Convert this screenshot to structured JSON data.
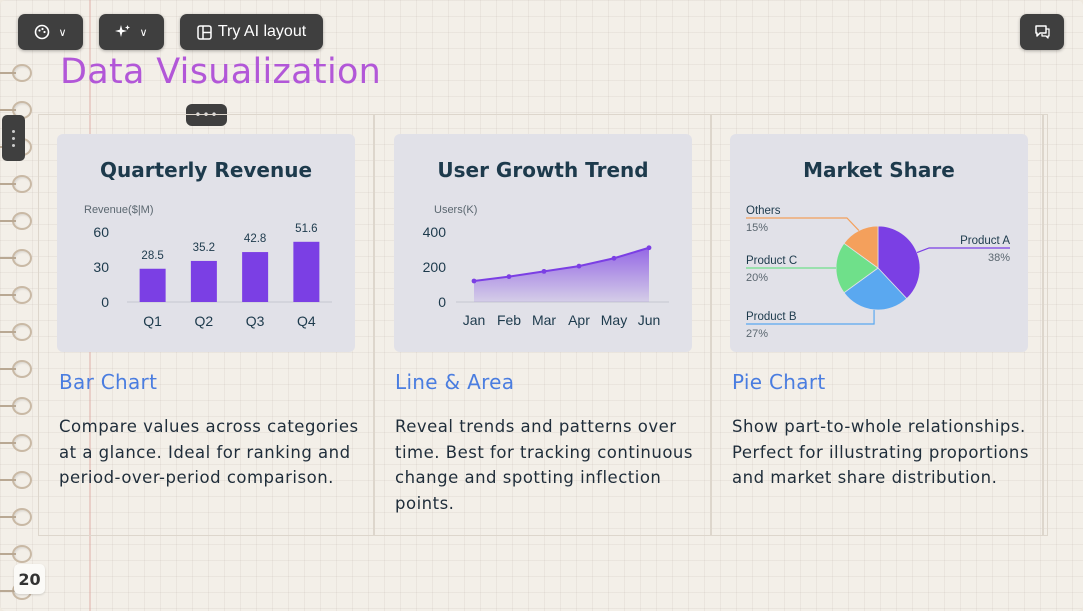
{
  "toolbar": {
    "theme_icon": "palette-icon",
    "ai_icon": "sparkle-icon",
    "try_ai_label": "Try AI layout",
    "layout_icon": "layout-icon",
    "comment_icon": "comment-icon"
  },
  "slide": {
    "title": "Data Visualization",
    "page_number": "20"
  },
  "columns": [
    {
      "card_title": "Quarterly Revenue",
      "heading": "Bar Chart",
      "description": "Compare values across categories at a glance. Ideal for ranking and period-over-period comparison."
    },
    {
      "card_title": "User Growth Trend",
      "heading": "Line & Area",
      "description": "Reveal trends and patterns over time. Best for tracking continuous change and spotting inflection points."
    },
    {
      "card_title": "Market Share",
      "heading": "Pie Chart",
      "description": "Show part-to-whole relationships. Perfect for illustrating proportions and market share distribution."
    }
  ],
  "colors": {
    "title": "#b257d8",
    "heading": "#4a7de0",
    "bar": "#7b3fe4",
    "line": "#7b3fe4",
    "pie_a": "#7b3fe4",
    "pie_b": "#5aa8f0",
    "pie_c": "#6fe08a",
    "pie_others": "#f4a05c"
  },
  "chart_data": [
    {
      "type": "bar",
      "title": "Quarterly Revenue",
      "ylabel": "Revenue($|M)",
      "categories": [
        "Q1",
        "Q2",
        "Q3",
        "Q4"
      ],
      "values": [
        28.5,
        35.2,
        42.8,
        51.6
      ],
      "value_labels": [
        "28.5",
        "35.2",
        "42.8",
        "51.6"
      ],
      "y_ticks": [
        "60",
        "30",
        "0"
      ],
      "ylim": [
        0,
        60
      ]
    },
    {
      "type": "area",
      "title": "User Growth Trend",
      "ylabel": "Users(K)",
      "categories": [
        "Jan",
        "Feb",
        "Mar",
        "Apr",
        "May",
        "Jun"
      ],
      "values": [
        120,
        145,
        175,
        205,
        250,
        310
      ],
      "y_ticks": [
        "400",
        "200",
        "0"
      ],
      "ylim": [
        0,
        400
      ]
    },
    {
      "type": "pie",
      "title": "Market Share",
      "slices": [
        {
          "name": "Product A",
          "value": 38,
          "label": "38%"
        },
        {
          "name": "Product B",
          "value": 27,
          "label": "27%"
        },
        {
          "name": "Product C",
          "value": 20,
          "label": "20%"
        },
        {
          "name": "Others",
          "value": 15,
          "label": "15%"
        }
      ]
    }
  ]
}
